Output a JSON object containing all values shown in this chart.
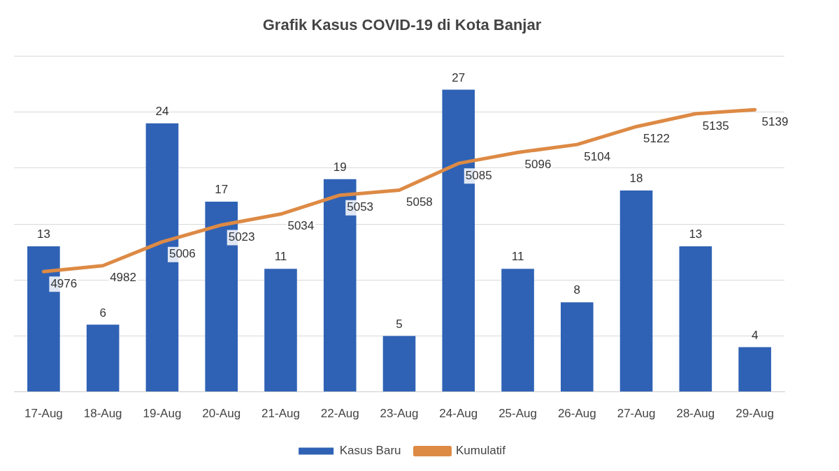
{
  "chart_data": {
    "type": "bar",
    "title": "Grafik Kasus COVID-19 di Kota Banjar",
    "categories": [
      "17-Aug",
      "18-Aug",
      "19-Aug",
      "20-Aug",
      "21-Aug",
      "22-Aug",
      "23-Aug",
      "24-Aug",
      "25-Aug",
      "26-Aug",
      "27-Aug",
      "28-Aug",
      "29-Aug"
    ],
    "series": [
      {
        "name": "Kasus Baru",
        "color": "#2f62b5",
        "values": [
          13,
          6,
          24,
          17,
          11,
          19,
          5,
          27,
          11,
          8,
          18,
          13,
          4
        ]
      },
      {
        "name": "Kumulatif",
        "type": "line",
        "axis": "y2",
        "color": "#dd8a45",
        "values": [
          4976,
          4982,
          5006,
          5023,
          5034,
          5053,
          5058,
          5085,
          5096,
          5104,
          5122,
          5135,
          5139
        ]
      }
    ],
    "ylim": [
      0,
      30
    ],
    "yticks": [
      {
        "value": 0,
        "label": null
      },
      {
        "value": 5,
        "label": null
      },
      {
        "value": 10,
        "label": null
      },
      {
        "value": 15,
        "label": null
      },
      {
        "value": 20,
        "label": null
      },
      {
        "value": 25,
        "label": null
      },
      {
        "value": 30,
        "label": null
      }
    ],
    "y2lim": [
      4855,
      5193
    ],
    "tick_labels": "x",
    "grid": "y",
    "legend": "bottom",
    "data_labels": true,
    "marker": "none",
    "line_style": "solid"
  }
}
